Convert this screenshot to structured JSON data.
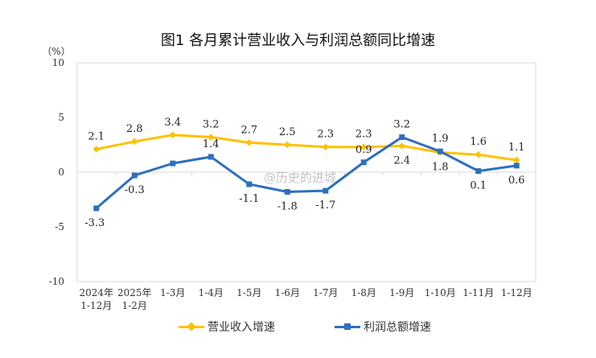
{
  "chart_data": {
    "type": "line",
    "title": "图1  各月累计营业收入与利润总额同比增速",
    "ylabel": "（%）",
    "ylim": [
      -10,
      10
    ],
    "yticks": [
      10,
      5,
      0,
      -5,
      -10
    ],
    "grid": false,
    "legend_position": "bottom",
    "categories": [
      "2024年\n1-12月",
      "2025年\n1-2月",
      "1-3月",
      "1-4月",
      "1-5月",
      "1-6月",
      "1-7月",
      "1-8月",
      "1-9月",
      "1-10月",
      "1-11月",
      "1-12月"
    ],
    "series": [
      {
        "name": "营业收入增速",
        "color": "#FFC000",
        "marker": "diamond",
        "values": [
          2.1,
          2.8,
          3.4,
          3.2,
          2.7,
          2.5,
          2.3,
          2.3,
          2.4,
          1.8,
          1.6,
          1.1
        ]
      },
      {
        "name": "利润总额增速",
        "color": "#2E6FBF",
        "marker": "square",
        "values": [
          -3.3,
          -0.3,
          0.8,
          1.4,
          -1.1,
          -1.8,
          -1.7,
          0.9,
          3.2,
          1.9,
          0.1,
          0.6
        ]
      }
    ],
    "data_labels": [
      [
        "2.1",
        "2.8",
        "3.4",
        "3.2",
        "2.7",
        "2.5",
        "2.3",
        "2.3",
        "2.4",
        "1.8",
        "1.6",
        "1.1"
      ],
      [
        "-3.3",
        "-0.3",
        "",
        "1.4",
        "-1.1",
        "-1.8",
        "-1.7",
        "0.9",
        "3.2",
        "1.9",
        "0.1",
        "0.6"
      ]
    ]
  },
  "watermark": "@历史的进城"
}
